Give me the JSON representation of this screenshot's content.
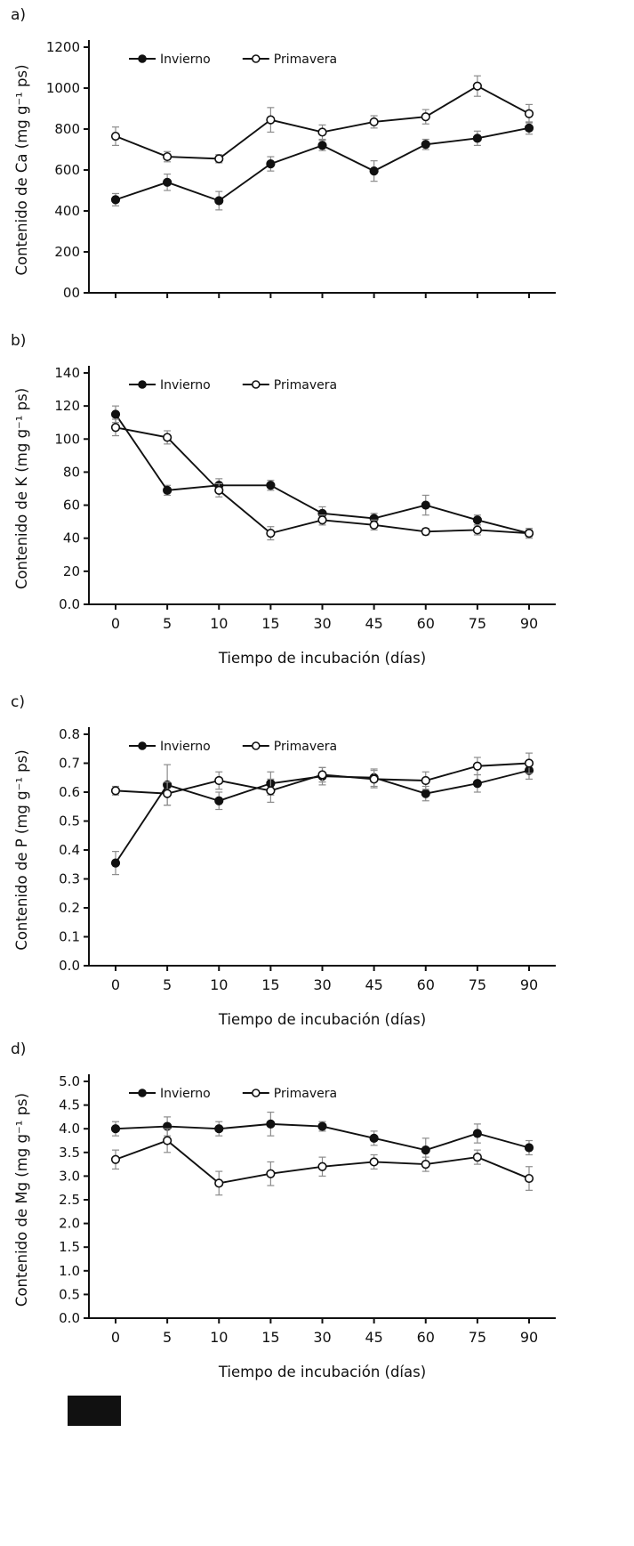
{
  "figure": {
    "background": "#ffffff",
    "text_color": "#111111",
    "line_color": "#111111",
    "error_bar_color": "#8c8c8c"
  },
  "panel_labels": [
    "a)",
    "b)",
    "c)",
    "d)"
  ],
  "legend_labels": [
    "Invierno",
    "Primavera"
  ],
  "chart_data": [
    {
      "type": "line",
      "panel": "a",
      "title": "",
      "categories": [
        "0",
        "5",
        "10",
        "15",
        "30",
        "45",
        "60",
        "75",
        "90"
      ],
      "x_labels_visible": false,
      "xlabel": "",
      "ylabel": "Contenido de Ca  (mg g⁻¹ ps)",
      "ylim": [
        0,
        1200
      ],
      "yticks": [
        0,
        200,
        400,
        600,
        800,
        1000,
        1200
      ],
      "ytick_labels": [
        "00",
        "200",
        "400",
        "600",
        "800",
        "1000",
        "1200"
      ],
      "grid": false,
      "legend_position": "top-inside",
      "series": [
        {
          "name": "Invierno",
          "marker": "filled-circle",
          "color": "#111111",
          "values": [
            455,
            540,
            450,
            630,
            720,
            595,
            725,
            755,
            805
          ],
          "errors": [
            30,
            40,
            45,
            35,
            25,
            50,
            25,
            35,
            30
          ]
        },
        {
          "name": "Primavera",
          "marker": "open-circle",
          "color": "#111111",
          "values": [
            765,
            665,
            655,
            845,
            785,
            835,
            860,
            1010,
            875
          ],
          "errors": [
            45,
            25,
            20,
            60,
            35,
            30,
            35,
            50,
            45
          ]
        }
      ]
    },
    {
      "type": "line",
      "panel": "b",
      "title": "",
      "categories": [
        "0",
        "5",
        "10",
        "15",
        "30",
        "45",
        "60",
        "75",
        "90"
      ],
      "x_labels_visible": true,
      "xlabel": "Tiempo de incubación (días)",
      "ylabel": "Contenido de K  (mg g⁻¹ ps)",
      "ylim": [
        0,
        140
      ],
      "yticks": [
        0,
        20,
        40,
        60,
        80,
        100,
        120,
        140
      ],
      "ytick_labels": [
        "0.0",
        "20",
        "40",
        "60",
        "80",
        "100",
        "120",
        "140"
      ],
      "grid": false,
      "legend_position": "top-inside",
      "series": [
        {
          "name": "Invierno",
          "marker": "filled-circle",
          "color": "#111111",
          "values": [
            115,
            69,
            72,
            72,
            55,
            52,
            60,
            51,
            43
          ],
          "errors": [
            5,
            3,
            4,
            3,
            4,
            3,
            6,
            3,
            2
          ]
        },
        {
          "name": "Primavera",
          "marker": "open-circle",
          "color": "#111111",
          "values": [
            107,
            101,
            69,
            43,
            51,
            48,
            44,
            45,
            43
          ],
          "errors": [
            5,
            4,
            4,
            4,
            3,
            3,
            2,
            3,
            3
          ]
        }
      ]
    },
    {
      "type": "line",
      "panel": "c",
      "title": "",
      "categories": [
        "0",
        "5",
        "10",
        "15",
        "30",
        "45",
        "60",
        "75",
        "90"
      ],
      "x_labels_visible": true,
      "xlabel": "Tiempo de incubación (días)",
      "ylabel": "Contenido de P   (mg g⁻¹ ps)",
      "ylim": [
        0,
        0.8
      ],
      "yticks": [
        0,
        0.1,
        0.2,
        0.3,
        0.4,
        0.5,
        0.6,
        0.7,
        0.8
      ],
      "ytick_labels": [
        "0.0",
        "0.1",
        "0.2",
        "0.3",
        "0.4",
        "0.5",
        "0.6",
        "0.7",
        "0.8"
      ],
      "grid": false,
      "legend_position": "top-inside",
      "series": [
        {
          "name": "Invierno",
          "marker": "filled-circle",
          "color": "#111111",
          "values": [
            0.355,
            0.625,
            0.57,
            0.63,
            0.655,
            0.65,
            0.595,
            0.63,
            0.675
          ],
          "errors": [
            0.04,
            0.07,
            0.03,
            0.04,
            0.03,
            0.03,
            0.025,
            0.03,
            0.03
          ]
        },
        {
          "name": "Primavera",
          "marker": "open-circle",
          "color": "#111111",
          "values": [
            0.605,
            0.595,
            0.64,
            0.605,
            0.66,
            0.645,
            0.64,
            0.69,
            0.7
          ],
          "errors": [
            0.015,
            0.04,
            0.03,
            0.04,
            0.025,
            0.03,
            0.03,
            0.03,
            0.035
          ]
        }
      ]
    },
    {
      "type": "line",
      "panel": "d",
      "title": "",
      "categories": [
        "0",
        "5",
        "10",
        "15",
        "30",
        "45",
        "60",
        "75",
        "90"
      ],
      "x_labels_visible": true,
      "xlabel": "Tiempo de incubación (días)",
      "ylabel": "Contenido de Mg  (mg g⁻¹ ps)",
      "ylim": [
        0,
        5
      ],
      "yticks": [
        0,
        0.5,
        1,
        1.5,
        2,
        2.5,
        3,
        3.5,
        4,
        4.5,
        5
      ],
      "ytick_labels": [
        "0.0",
        "0.5",
        "1.0",
        "1.5",
        "2.0",
        "2.5",
        "3.0",
        "3.5",
        "4.0",
        "4.5",
        "5.0"
      ],
      "grid": false,
      "legend_position": "top-inside",
      "series": [
        {
          "name": "Invierno",
          "marker": "filled-circle",
          "color": "#111111",
          "values": [
            4.0,
            4.05,
            4.0,
            4.1,
            4.05,
            3.8,
            3.55,
            3.9,
            3.6
          ],
          "errors": [
            0.15,
            0.2,
            0.15,
            0.25,
            0.1,
            0.15,
            0.25,
            0.2,
            0.15
          ]
        },
        {
          "name": "Primavera",
          "marker": "open-circle",
          "color": "#111111",
          "values": [
            3.35,
            3.75,
            2.85,
            3.05,
            3.2,
            3.3,
            3.25,
            3.4,
            2.95
          ],
          "errors": [
            0.2,
            0.25,
            0.25,
            0.25,
            0.2,
            0.15,
            0.15,
            0.15,
            0.25
          ]
        }
      ]
    }
  ]
}
